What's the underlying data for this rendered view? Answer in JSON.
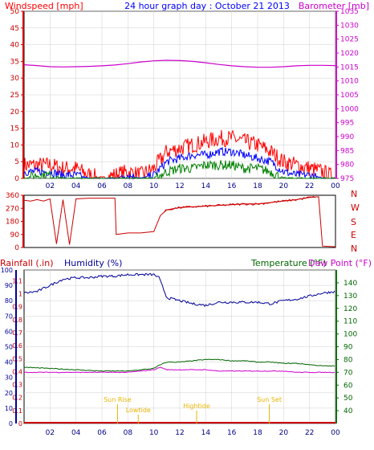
{
  "header": {
    "left_label": "Windspeed [mph]",
    "center_title": "24 hour graph day : October 21 2013",
    "right_label": "Barometer [mb]"
  },
  "colors": {
    "wind": "#ff0000",
    "wind_avg": "#0000ff",
    "wind_low": "#008000",
    "barometer": "#cc00cc",
    "direction": "#cc0000",
    "rainfall": "#cc0000",
    "humidity": "#000099",
    "temperature": "#006600",
    "dewpoint": "#cc00cc",
    "events": "#e8b400",
    "grid": "#cfcfcf",
    "frame": "#000000"
  },
  "lower_labels": {
    "rainfall": "Rainfall (.in)",
    "humidity": "Humidity (%)",
    "temperature": "Temperature (°F)",
    "dewpoint": "Dew Point (°F)"
  },
  "events": [
    "Sun Rise",
    "Lowtide",
    "Hightide",
    "Sun Set"
  ],
  "chart_data": [
    {
      "type": "line",
      "title": "24 hour graph day : October 21 2013",
      "x_ticks": [
        "02",
        "04",
        "06",
        "08",
        "10",
        "12",
        "14",
        "16",
        "18",
        "20",
        "22",
        "00"
      ],
      "xlim": [
        0,
        24
      ],
      "ylabel": "Windspeed [mph]",
      "ylim": [
        0,
        50
      ],
      "y_ticks": [
        0,
        5,
        10,
        15,
        20,
        25,
        30,
        35,
        40,
        45,
        50
      ],
      "y2label": "Barometer [mb]",
      "y2lim": [
        975,
        1035
      ],
      "y2_ticks": [
        975,
        980,
        985,
        990,
        995,
        1000,
        1005,
        1010,
        1015,
        1020,
        1025,
        1030,
        1035
      ],
      "series": [
        {
          "axis": "y2",
          "x": [
            0,
            1,
            2,
            3,
            4,
            5,
            6,
            7,
            8,
            9,
            10,
            11,
            12,
            13,
            14,
            15,
            16,
            17,
            18,
            19,
            20,
            21,
            22,
            23,
            24
          ],
          "values": [
            1015.8,
            1015.5,
            1015.1,
            1015.0,
            1015.1,
            1015.2,
            1015.4,
            1015.7,
            1016.2,
            1016.8,
            1017.2,
            1017.4,
            1017.3,
            1017.0,
            1016.5,
            1015.9,
            1015.4,
            1015.1,
            1014.9,
            1014.9,
            1015.1,
            1015.4,
            1015.6,
            1015.6,
            1015.5
          ]
        },
        {
          "x": [
            0,
            1,
            2,
            3,
            4,
            5,
            6,
            7,
            8,
            9,
            10,
            11,
            12,
            13,
            14,
            15,
            16,
            17,
            18,
            19,
            20,
            21,
            22,
            23,
            24
          ],
          "values": [
            4,
            4,
            4,
            3,
            3,
            1,
            0,
            1,
            2,
            1,
            3,
            8,
            9,
            10,
            11,
            12,
            12,
            11,
            10,
            8,
            5,
            4,
            3,
            2,
            0
          ]
        },
        {
          "x": [
            0,
            1,
            2,
            3,
            4,
            5,
            6,
            7,
            8,
            9,
            10,
            11,
            12,
            13,
            14,
            15,
            16,
            17,
            18,
            19,
            20,
            21,
            22,
            23,
            24
          ],
          "values": [
            2,
            2,
            2,
            1,
            1,
            0,
            0,
            0,
            1,
            0,
            1,
            5,
            6,
            7,
            7,
            8,
            8,
            7,
            6,
            5,
            2,
            1,
            1,
            0,
            0
          ]
        },
        {
          "x": [
            0,
            1,
            2,
            3,
            4,
            5,
            6,
            7,
            8,
            9,
            10,
            11,
            12,
            13,
            14,
            15,
            16,
            17,
            18,
            19,
            20,
            21,
            22,
            23,
            24
          ],
          "values": [
            0,
            1,
            1,
            0,
            0,
            0,
            0,
            0,
            0,
            0,
            0,
            2,
            3,
            3,
            4,
            4,
            4,
            3,
            3,
            2,
            0,
            0,
            0,
            0,
            0
          ]
        }
      ]
    },
    {
      "type": "line",
      "ylabel": "Wind direction",
      "ylim": [
        0,
        360
      ],
      "y_ticks": [
        0,
        90,
        180,
        270,
        360
      ],
      "compass_labels": [
        "N",
        "W",
        "S",
        "E",
        "N"
      ],
      "xlim": [
        0,
        24
      ],
      "series": [
        {
          "x": [
            0,
            0.5,
            1.0,
            1.5,
            2.0,
            2.5,
            3.0,
            3.5,
            4.0,
            5.0,
            6.0,
            7.0,
            7.1,
            8.0,
            9.0,
            10.0,
            10.5,
            11.0,
            12.0,
            13.0,
            14.0,
            15.0,
            16.0,
            17.0,
            18.0,
            19.0,
            20.0,
            21.0,
            22.0,
            22.7,
            23.0,
            24.0
          ],
          "values": [
            325,
            320,
            330,
            320,
            335,
            25,
            330,
            20,
            335,
            340,
            340,
            340,
            90,
            100,
            100,
            110,
            220,
            260,
            275,
            280,
            285,
            290,
            295,
            300,
            300,
            310,
            320,
            330,
            345,
            350,
            10,
            5
          ]
        }
      ]
    },
    {
      "type": "line",
      "xlim": [
        0,
        24
      ],
      "x_ticks": [
        "02",
        "04",
        "06",
        "08",
        "10",
        "12",
        "14",
        "16",
        "18",
        "20",
        "22",
        "00"
      ],
      "ylabel": "Humidity (%)",
      "ylim": [
        0,
        100
      ],
      "y_ticks": [
        0,
        10,
        20,
        30,
        40,
        50,
        60,
        70,
        80,
        90,
        100
      ],
      "rain_ylabel": "Rainfall (.in)",
      "rain_ticks": [
        "0",
        "0.1",
        "0.2",
        "0.3",
        "0.4",
        "0.5",
        "0.6",
        "0.7",
        "0.8",
        "0.9",
        "1",
        "1.1"
      ],
      "y2label": "Temperature (°F)",
      "y2lim": [
        30,
        150
      ],
      "y2_ticks": [
        40,
        50,
        60,
        70,
        80,
        90,
        100,
        110,
        120,
        130,
        140
      ],
      "series": [
        {
          "x": [
            0,
            1,
            2,
            3,
            4,
            5,
            6,
            7,
            8,
            9,
            10,
            10.4,
            11,
            12,
            13,
            14,
            15,
            16,
            17,
            18,
            19,
            20,
            21,
            22,
            23,
            24
          ],
          "values": [
            85,
            86,
            90,
            94,
            95,
            95,
            96,
            96,
            97,
            97,
            97,
            95,
            82,
            80,
            78,
            77,
            79,
            79,
            79,
            79,
            78,
            80,
            81,
            83,
            85,
            86
          ]
        },
        {
          "axis": "y2",
          "x": [
            0,
            2,
            4,
            6,
            8,
            9,
            10,
            10.5,
            11,
            12,
            13,
            14,
            15,
            16,
            17,
            18,
            19,
            20,
            21,
            22,
            23,
            24
          ],
          "values": [
            74,
            73,
            72,
            71,
            71,
            72,
            73,
            76,
            78,
            78,
            79,
            80,
            80,
            79,
            79,
            78,
            78,
            77,
            77,
            76,
            75,
            75
          ]
        },
        {
          "axis": "y2",
          "x": [
            0,
            2,
            4,
            6,
            8,
            9,
            10,
            10.5,
            11,
            12,
            13,
            14,
            15,
            16,
            17,
            18,
            19,
            20,
            21,
            22,
            23,
            24
          ],
          "values": [
            70,
            70,
            70,
            70,
            70,
            71,
            72,
            74,
            72,
            72,
            72,
            72,
            71,
            71,
            71,
            71,
            71,
            71,
            70,
            70,
            70,
            70
          ]
        },
        {
          "x": [
            0,
            24
          ],
          "values": [
            0,
            0
          ]
        }
      ]
    }
  ]
}
